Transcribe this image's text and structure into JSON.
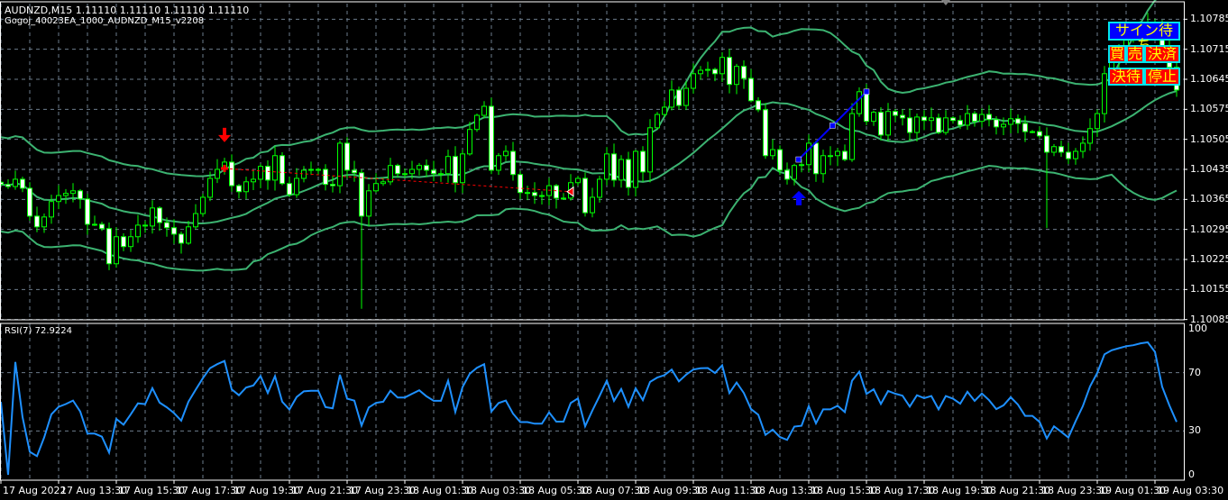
{
  "header": {
    "symbol_line": "AUDNZD,M15  1.11110 1.11110 1.11110 1.11110",
    "ea_name": "Gogoj_40023EA_1000_AUDNZD_M15_v2208"
  },
  "rsi_panel": {
    "label": "RSI(7) 72.9224"
  },
  "buttons": {
    "wait_signal": "サイン待ち",
    "buy": "買",
    "sell": "売",
    "settle": "決済",
    "settle_wait": "決待",
    "stop": "停止"
  },
  "colors": {
    "background": "#000000",
    "grid": "#6b7b8c",
    "bull_candle": "#00ff00",
    "bear_candle": "#ffffff",
    "bollinger": "#3cb371",
    "rsi": "#1e90ff",
    "sell_signal": "#ff0000",
    "buy_signal": "#0000ff",
    "button_blue": "#0000ff",
    "button_red": "#ff0000",
    "button_text": "#ffff00"
  },
  "chart_data": {
    "type": "candlestick",
    "symbol": "AUDNZD",
    "timeframe": "M15",
    "price_axis": {
      "range": [
        1.10075,
        1.10815
      ],
      "ticks": [
        "1.10785",
        "1.10715",
        "1.10645",
        "1.10575",
        "1.10505",
        "1.10435",
        "1.10365",
        "1.10295",
        "1.10225",
        "1.10155",
        "1.10085"
      ]
    },
    "time_axis": {
      "ticks": [
        "17 Aug 2022",
        "17 Aug 13:30",
        "17 Aug 15:30",
        "17 Aug 17:30",
        "17 Aug 19:30",
        "17 Aug 21:30",
        "17 Aug 23:30",
        "18 Aug 01:30",
        "18 Aug 03:30",
        "18 Aug 05:30",
        "18 Aug 07:30",
        "18 Aug 09:30",
        "18 Aug 11:30",
        "18 Aug 13:30",
        "18 Aug 15:30",
        "18 Aug 17:30",
        "18 Aug 19:30",
        "18 Aug 21:30",
        "18 Aug 23:30",
        "19 Aug 01:30",
        "19 Aug 03:30"
      ],
      "bars_per_tick": 8
    },
    "closes": [
      1.104,
      1.10395,
      1.10412,
      1.10391,
      1.10326,
      1.10301,
      1.10324,
      1.1036,
      1.10374,
      1.10379,
      1.10385,
      1.10366,
      1.10307,
      1.10307,
      1.10297,
      1.10215,
      1.10278,
      1.10255,
      1.10278,
      1.10305,
      1.10303,
      1.10345,
      1.10311,
      1.10299,
      1.10284,
      1.10263,
      1.10301,
      1.10332,
      1.1037,
      1.10414,
      1.10435,
      1.10452,
      1.10397,
      1.10383,
      1.10406,
      1.10412,
      1.10442,
      1.1041,
      1.10467,
      1.10402,
      1.10376,
      1.10414,
      1.10433,
      1.10435,
      1.10435,
      1.104,
      1.10397,
      1.10496,
      1.10433,
      1.10427,
      1.10326,
      1.10385,
      1.10402,
      1.10406,
      1.10444,
      1.10425,
      1.10425,
      1.10435,
      1.10444,
      1.10433,
      1.10425,
      1.10425,
      1.10465,
      1.10404,
      1.10471,
      1.10528,
      1.10561,
      1.10582,
      1.10433,
      1.10467,
      1.10477,
      1.10423,
      1.10381,
      1.10381,
      1.10374,
      1.10374,
      1.10397,
      1.10368,
      1.10368,
      1.10404,
      1.10414,
      1.10334,
      1.1037,
      1.10412,
      1.10471,
      1.1041,
      1.10458,
      1.10393,
      1.10477,
      1.10429,
      1.10532,
      1.10563,
      1.1058,
      1.1062,
      1.10584,
      1.10624,
      1.10658,
      1.10666,
      1.10668,
      1.10658,
      1.10696,
      1.10633,
      1.10675,
      1.10647,
      1.10595,
      1.10574,
      1.10467,
      1.10481,
      1.10433,
      1.10412,
      1.10444,
      1.10446,
      1.10496,
      1.10425,
      1.10467,
      1.10467,
      1.10477,
      1.10458,
      1.10565,
      1.10616,
      1.10547,
      1.10568,
      1.10515,
      1.1057,
      1.10561,
      1.10555,
      1.10521,
      1.10557,
      1.10549,
      1.10555,
      1.10521,
      1.10555,
      1.10549,
      1.10538,
      1.10565,
      1.10547,
      1.10563,
      1.10551,
      1.10534,
      1.1054,
      1.10553,
      1.10542,
      1.10523,
      1.10523,
      1.10513,
      1.10475,
      1.10488,
      1.10475,
      1.1046,
      1.10477,
      1.10496,
      1.1053,
      1.10565,
      1.10658,
      1.10694,
      1.10715,
      1.10736,
      1.10746,
      1.10767,
      1.10778,
      1.10767,
      1.10715,
      1.10673,
      1.1062
    ],
    "long_wicks": [
      {
        "bar": 50,
        "low": 1.1011
      },
      {
        "bar": 145,
        "low": 1.10298
      },
      {
        "bar": 15,
        "low": 1.102
      }
    ],
    "indicators": {
      "bollinger": {
        "period": 20,
        "deviation": 2
      },
      "rsi": {
        "period": 7,
        "levels": [
          70,
          30
        ],
        "range": [
          0,
          100
        ],
        "ticks": [
          "100",
          "70",
          "30",
          "0"
        ],
        "last": 72.9224
      }
    },
    "signals": {
      "sell_arrow": {
        "bar": 31,
        "price": 1.10515
      },
      "buy_arrow": {
        "bar": 111,
        "price": 1.10368
      },
      "sell_trade_line": {
        "from": {
          "bar": 31,
          "price": 1.10437
        },
        "to": {
          "bar": 79,
          "price": 1.10383
        }
      },
      "buy_trade_line": {
        "from": {
          "bar": 110.6,
          "price": 1.10458
        },
        "to": {
          "bar": 120,
          "price": 1.10616
        }
      }
    }
  }
}
